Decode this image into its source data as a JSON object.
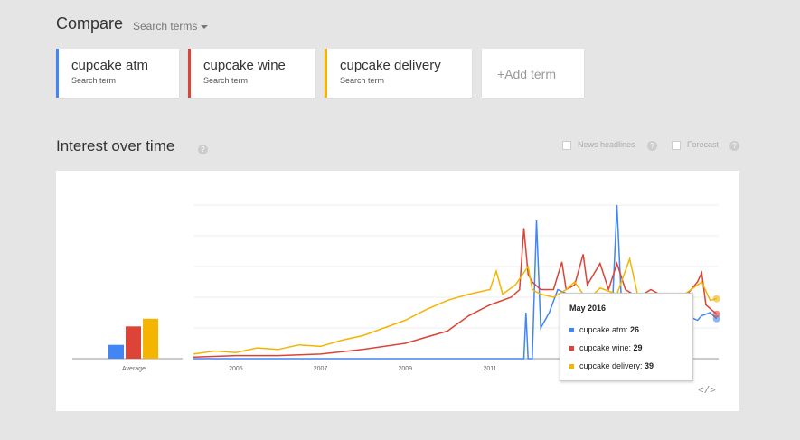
{
  "header": {
    "title": "Compare",
    "search_terms_label": "Search terms"
  },
  "terms": [
    {
      "name": "cupcake atm",
      "sub": "Search term",
      "color": "#4285f4"
    },
    {
      "name": "cupcake wine",
      "sub": "Search term",
      "color": "#db4437"
    },
    {
      "name": "cupcake delivery",
      "sub": "Search term",
      "color": "#f4b400"
    }
  ],
  "add_term_label": "+Add term",
  "section": {
    "title": "Interest over time",
    "help": "?",
    "news_headlines": "News headlines",
    "forecast": "Forecast"
  },
  "chart_data": {
    "type": "line",
    "average": {
      "label": "Average",
      "values": [
        9,
        21,
        26
      ]
    },
    "x_ticks": [
      "2005",
      "2007",
      "2009",
      "2011"
    ],
    "x_range": [
      2004,
      2016.4
    ],
    "ylim": [
      0,
      100
    ],
    "series": [
      {
        "name": "cupcake atm",
        "color": "#4285f4",
        "points": [
          [
            2004,
            0
          ],
          [
            2011.8,
            0
          ],
          [
            2011.85,
            30
          ],
          [
            2011.9,
            0
          ],
          [
            2012.0,
            0
          ],
          [
            2012.1,
            90
          ],
          [
            2012.2,
            20
          ],
          [
            2012.4,
            30
          ],
          [
            2012.6,
            45
          ],
          [
            2013,
            40
          ],
          [
            2013.5,
            35
          ],
          [
            2013.9,
            40
          ],
          [
            2014.0,
            100
          ],
          [
            2014.1,
            40
          ],
          [
            2014.5,
            40
          ],
          [
            2015,
            35
          ],
          [
            2015.5,
            30
          ],
          [
            2015.9,
            25
          ],
          [
            2016,
            28
          ],
          [
            2016.2,
            30
          ],
          [
            2016.35,
            26
          ]
        ]
      },
      {
        "name": "cupcake wine",
        "color": "#db4437",
        "points": [
          [
            2004,
            1
          ],
          [
            2005,
            2
          ],
          [
            2006,
            2
          ],
          [
            2007,
            3
          ],
          [
            2008,
            6
          ],
          [
            2009,
            10
          ],
          [
            2010,
            18
          ],
          [
            2010.5,
            28
          ],
          [
            2011,
            35
          ],
          [
            2011.5,
            40
          ],
          [
            2011.7,
            45
          ],
          [
            2011.8,
            85
          ],
          [
            2011.9,
            55
          ],
          [
            2012,
            50
          ],
          [
            2012.2,
            45
          ],
          [
            2012.5,
            45
          ],
          [
            2012.7,
            63
          ],
          [
            2012.8,
            45
          ],
          [
            2013,
            48
          ],
          [
            2013.2,
            68
          ],
          [
            2013.3,
            48
          ],
          [
            2013.6,
            62
          ],
          [
            2013.8,
            45
          ],
          [
            2014,
            62
          ],
          [
            2014.2,
            45
          ],
          [
            2014.5,
            40
          ],
          [
            2014.8,
            45
          ],
          [
            2015,
            42
          ],
          [
            2015.3,
            35
          ],
          [
            2015.6,
            40
          ],
          [
            2015.9,
            50
          ],
          [
            2016,
            56
          ],
          [
            2016.1,
            35
          ],
          [
            2016.35,
            29
          ]
        ]
      },
      {
        "name": "cupcake delivery",
        "color": "#f4b400",
        "points": [
          [
            2004,
            3
          ],
          [
            2004.5,
            5
          ],
          [
            2005,
            4
          ],
          [
            2005.5,
            7
          ],
          [
            2006,
            6
          ],
          [
            2006.5,
            9
          ],
          [
            2007,
            8
          ],
          [
            2007.5,
            12
          ],
          [
            2008,
            15
          ],
          [
            2008.5,
            20
          ],
          [
            2009,
            25
          ],
          [
            2009.5,
            32
          ],
          [
            2010,
            38
          ],
          [
            2010.5,
            42
          ],
          [
            2011,
            45
          ],
          [
            2011.15,
            57
          ],
          [
            2011.3,
            42
          ],
          [
            2011.6,
            48
          ],
          [
            2011.9,
            60
          ],
          [
            2012,
            45
          ],
          [
            2012.2,
            42
          ],
          [
            2012.5,
            40
          ],
          [
            2012.8,
            45
          ],
          [
            2013,
            50
          ],
          [
            2013.3,
            38
          ],
          [
            2013.6,
            46
          ],
          [
            2014,
            42
          ],
          [
            2014.3,
            65
          ],
          [
            2014.5,
            40
          ],
          [
            2015,
            38
          ],
          [
            2015.5,
            40
          ],
          [
            2016,
            50
          ],
          [
            2016.2,
            38
          ],
          [
            2016.35,
            39
          ]
        ]
      }
    ]
  },
  "tooltip": {
    "title": "May 2016",
    "rows": [
      {
        "label": "cupcake atm: ",
        "value": "26",
        "color": "#4285f4"
      },
      {
        "label": "cupcake wine: ",
        "value": "29",
        "color": "#db4437"
      },
      {
        "label": "cupcake delivery: ",
        "value": "39",
        "color": "#f4b400"
      }
    ]
  },
  "embed_icon": "</>"
}
